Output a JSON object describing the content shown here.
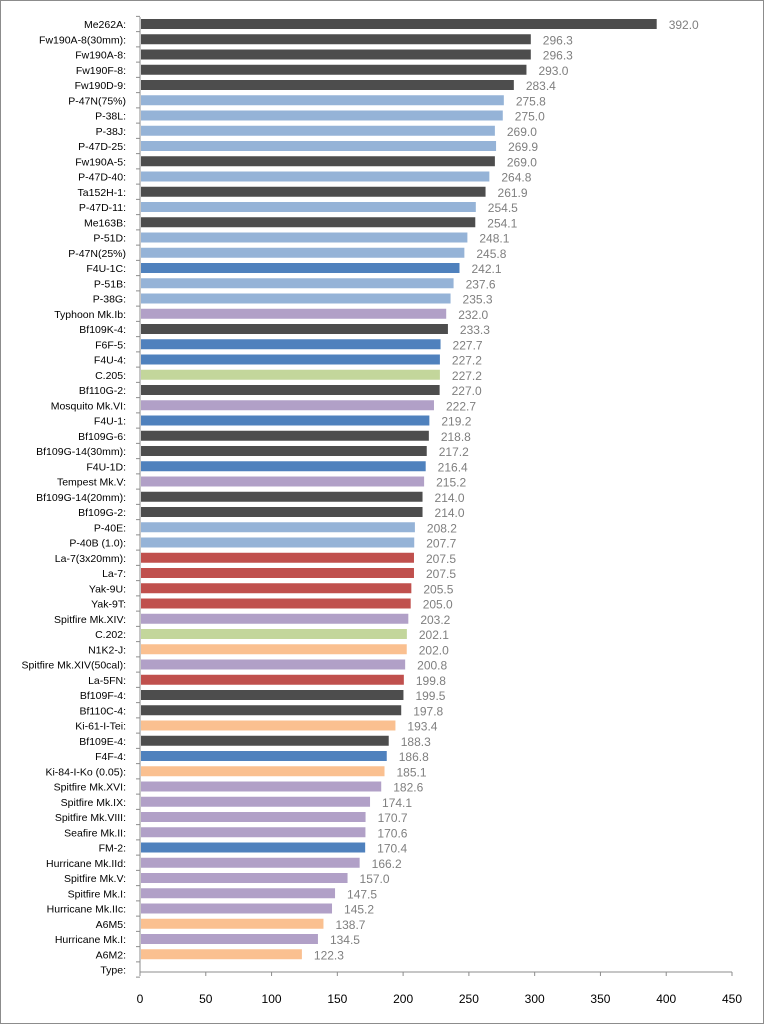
{
  "chart_data": {
    "type": "bar",
    "orientation": "horizontal",
    "title": "",
    "xlabel": "",
    "ylabel": "",
    "xlim": [
      0,
      450
    ],
    "xticks": [
      "0",
      "50",
      "100",
      "150",
      "200",
      "250",
      "300",
      "350",
      "400",
      "450"
    ],
    "grid": false,
    "legend": "none",
    "colors": {
      "german": "#4d4d4d",
      "us_army": "#95b3d7",
      "us_navy": "#4f81bd",
      "british": "#b1a0c7",
      "italian": "#c3d69b",
      "soviet": "#c0504d",
      "japanese": "#fac090"
    },
    "bars": [
      {
        "label": "Me262A:",
        "value": 392.0,
        "display": "392.0",
        "group": "german"
      },
      {
        "label": "Fw190A-8(30mm):",
        "value": 296.3,
        "display": "296.3",
        "group": "german"
      },
      {
        "label": "Fw190A-8:",
        "value": 296.3,
        "display": "296.3",
        "group": "german"
      },
      {
        "label": "Fw190F-8:",
        "value": 293.0,
        "display": "293.0",
        "group": "german"
      },
      {
        "label": "Fw190D-9:",
        "value": 283.4,
        "display": "283.4",
        "group": "german"
      },
      {
        "label": "P-47N(75%)",
        "value": 275.8,
        "display": "275.8",
        "group": "us_army"
      },
      {
        "label": "P-38L:",
        "value": 275.0,
        "display": "275.0",
        "group": "us_army"
      },
      {
        "label": "P-38J:",
        "value": 269.0,
        "display": "269.0",
        "group": "us_army"
      },
      {
        "label": "P-47D-25:",
        "value": 269.9,
        "display": "269.9",
        "group": "us_army"
      },
      {
        "label": "Fw190A-5:",
        "value": 269.0,
        "display": "269.0",
        "group": "german"
      },
      {
        "label": "P-47D-40:",
        "value": 264.8,
        "display": "264.8",
        "group": "us_army"
      },
      {
        "label": "Ta152H-1:",
        "value": 261.9,
        "display": "261.9",
        "group": "german"
      },
      {
        "label": "P-47D-11:",
        "value": 254.5,
        "display": "254.5",
        "group": "us_army"
      },
      {
        "label": "Me163B:",
        "value": 254.1,
        "display": "254.1",
        "group": "german"
      },
      {
        "label": "P-51D:",
        "value": 248.1,
        "display": "248.1",
        "group": "us_army"
      },
      {
        "label": "P-47N(25%)",
        "value": 245.8,
        "display": "245.8",
        "group": "us_army"
      },
      {
        "label": "F4U-1C:",
        "value": 242.1,
        "display": "242.1",
        "group": "us_navy"
      },
      {
        "label": "P-51B:",
        "value": 237.6,
        "display": "237.6",
        "group": "us_army"
      },
      {
        "label": "P-38G:",
        "value": 235.3,
        "display": "235.3",
        "group": "us_army"
      },
      {
        "label": "Typhoon Mk.Ib:",
        "value": 232.0,
        "display": "232.0",
        "group": "british"
      },
      {
        "label": "Bf109K-4:",
        "value": 233.3,
        "display": "233.3",
        "group": "german"
      },
      {
        "label": "F6F-5:",
        "value": 227.7,
        "display": "227.7",
        "group": "us_navy"
      },
      {
        "label": "F4U-4:",
        "value": 227.2,
        "display": "227.2",
        "group": "us_navy"
      },
      {
        "label": "C.205:",
        "value": 227.2,
        "display": "227.2",
        "group": "italian"
      },
      {
        "label": "Bf110G-2:",
        "value": 227.0,
        "display": "227.0",
        "group": "german"
      },
      {
        "label": "Mosquito Mk.VI:",
        "value": 222.7,
        "display": "222.7",
        "group": "british"
      },
      {
        "label": "F4U-1:",
        "value": 219.2,
        "display": "219.2",
        "group": "us_navy"
      },
      {
        "label": "Bf109G-6:",
        "value": 218.8,
        "display": "218.8",
        "group": "german"
      },
      {
        "label": "Bf109G-14(30mm):",
        "value": 217.2,
        "display": "217.2",
        "group": "german"
      },
      {
        "label": "F4U-1D:",
        "value": 216.4,
        "display": "216.4",
        "group": "us_navy"
      },
      {
        "label": "Tempest Mk.V:",
        "value": 215.2,
        "display": "215.2",
        "group": "british"
      },
      {
        "label": "Bf109G-14(20mm):",
        "value": 214.0,
        "display": "214.0",
        "group": "german"
      },
      {
        "label": "Bf109G-2:",
        "value": 214.0,
        "display": "214.0",
        "group": "german"
      },
      {
        "label": "P-40E:",
        "value": 208.2,
        "display": "208.2",
        "group": "us_army"
      },
      {
        "label": "P-40B (1.0):",
        "value": 207.7,
        "display": "207.7",
        "group": "us_army"
      },
      {
        "label": "La-7(3x20mm):",
        "value": 207.5,
        "display": "207.5",
        "group": "soviet"
      },
      {
        "label": "La-7:",
        "value": 207.5,
        "display": "207.5",
        "group": "soviet"
      },
      {
        "label": "Yak-9U:",
        "value": 205.5,
        "display": "205.5",
        "group": "soviet"
      },
      {
        "label": "Yak-9T:",
        "value": 205.0,
        "display": "205.0",
        "group": "soviet"
      },
      {
        "label": "Spitfire Mk.XIV:",
        "value": 203.2,
        "display": "203.2",
        "group": "british"
      },
      {
        "label": "C.202:",
        "value": 202.1,
        "display": "202.1",
        "group": "italian"
      },
      {
        "label": "N1K2-J:",
        "value": 202.0,
        "display": "202.0",
        "group": "japanese"
      },
      {
        "label": "Spitfire Mk.XIV(50cal):",
        "value": 200.8,
        "display": "200.8",
        "group": "british"
      },
      {
        "label": "La-5FN:",
        "value": 199.8,
        "display": "199.8",
        "group": "soviet"
      },
      {
        "label": "Bf109F-4:",
        "value": 199.5,
        "display": "199.5",
        "group": "german"
      },
      {
        "label": "Bf110C-4:",
        "value": 197.8,
        "display": "197.8",
        "group": "german"
      },
      {
        "label": "Ki-61-I-Tei:",
        "value": 193.4,
        "display": "193.4",
        "group": "japanese"
      },
      {
        "label": "Bf109E-4:",
        "value": 188.3,
        "display": "188.3",
        "group": "german"
      },
      {
        "label": "F4F-4:",
        "value": 186.8,
        "display": "186.8",
        "group": "us_navy"
      },
      {
        "label": "Ki-84-I-Ko (0.05):",
        "value": 185.1,
        "display": "185.1",
        "group": "japanese"
      },
      {
        "label": "Spitfire Mk.XVI:",
        "value": 182.6,
        "display": "182.6",
        "group": "british"
      },
      {
        "label": "Spitfire Mk.IX:",
        "value": 174.1,
        "display": "174.1",
        "group": "british"
      },
      {
        "label": "Spitfire Mk.VIII:",
        "value": 170.7,
        "display": "170.7",
        "group": "british"
      },
      {
        "label": "Seafire Mk.II:",
        "value": 170.6,
        "display": "170.6",
        "group": "british"
      },
      {
        "label": "FM-2:",
        "value": 170.4,
        "display": "170.4",
        "group": "us_navy"
      },
      {
        "label": "Hurricane Mk.IId:",
        "value": 166.2,
        "display": "166.2",
        "group": "british"
      },
      {
        "label": "Spitfire Mk.V:",
        "value": 157.0,
        "display": "157.0",
        "group": "british"
      },
      {
        "label": "Spitfire Mk.I:",
        "value": 147.5,
        "display": "147.5",
        "group": "british"
      },
      {
        "label": "Hurricane Mk.IIc:",
        "value": 145.2,
        "display": "145.2",
        "group": "british"
      },
      {
        "label": "A6M5:",
        "value": 138.7,
        "display": "138.7",
        "group": "japanese"
      },
      {
        "label": "Hurricane Mk.I:",
        "value": 134.5,
        "display": "134.5",
        "group": "british"
      },
      {
        "label": "A6M2:",
        "value": 122.3,
        "display": "122.3",
        "group": "japanese"
      },
      {
        "label": "Type:",
        "value": null,
        "display": "",
        "group": "none"
      }
    ]
  }
}
